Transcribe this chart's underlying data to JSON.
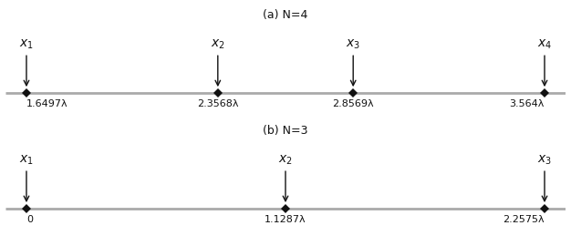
{
  "subfig_a": {
    "title": "(a) N=4",
    "positions": [
      1.6497,
      2.3568,
      2.8569,
      3.564
    ],
    "labels": [
      "x_1",
      "x_2",
      "x_3",
      "x_4"
    ],
    "tick_labels": [
      "1.6497λ",
      "2.3568λ",
      "2.8569λ",
      "3.564λ"
    ],
    "tick_ha": [
      "left",
      "center",
      "center",
      "right"
    ]
  },
  "subfig_b": {
    "title": "(b) N=3",
    "positions": [
      0,
      1.1287,
      2.2575
    ],
    "labels": [
      "x_1",
      "x_2",
      "x_3"
    ],
    "tick_labels": [
      "0",
      "1.1287λ",
      "2.2575λ"
    ],
    "tick_ha": [
      "left",
      "center",
      "right"
    ]
  },
  "line_color": "#aaaaaa",
  "marker_color": "#111111",
  "arrow_color": "#111111",
  "text_color": "#111111",
  "bg_color": "#ffffff",
  "title_fontsize": 9,
  "label_fontsize": 10,
  "tick_fontsize": 8,
  "line_lw": 2.0,
  "marker_size": 5,
  "arrow_lw": 1.0,
  "arrow_mutation_scale": 10
}
